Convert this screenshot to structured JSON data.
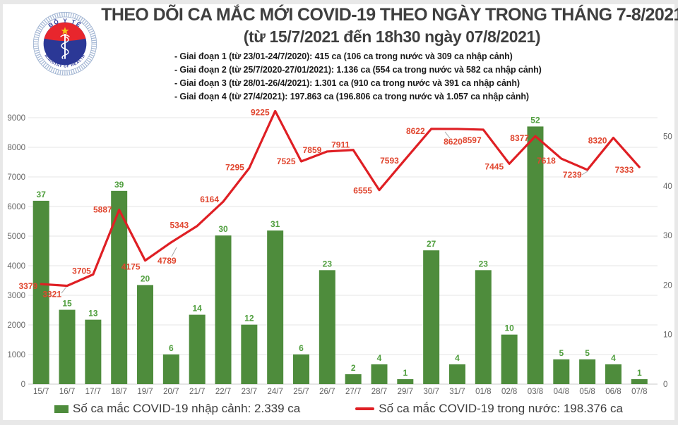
{
  "header": {
    "title_line1": "THEO DÕI CA MẮC MỚI COVID-19 THEO NGÀY TRONG THÁNG 7-8/2021",
    "title_line2": "(từ 15/7/2021 đến 18h30 ngày 07/8/2021)",
    "logo": {
      "top_text": "BỘ Y TẾ",
      "bottom_text": "MINISTRY OF HEALTH"
    },
    "notes": [
      "- Giai đoạn 1 (từ 23/01-24/7/2020): 415 ca (106 ca trong nước và 309 ca nhập cảnh)",
      "- Giai đoạn 2 (từ 25/7/2020-27/01/2021): 1.136 ca (554 ca trong nước và 582 ca nhập cảnh)",
      "- Giai đoạn 3 (từ 28/01-26/4/2021): 1.301 ca (910 ca trong nước và 391 ca nhập cảnh)",
      "- Giai đoạn 4 (từ 27/4/2021): 197.863 ca (196.806 ca trong nước và 1.057 ca nhập cảnh)"
    ]
  },
  "chart_data": {
    "type": "combo-bar-line",
    "categories": [
      "15/7",
      "16/7",
      "17/7",
      "18/7",
      "19/7",
      "20/7",
      "21/7",
      "22/7",
      "23/7",
      "24/7",
      "25/7",
      "26/7",
      "27/7",
      "28/7",
      "29/7",
      "30/7",
      "31/7",
      "01/8",
      "02/8",
      "03/8",
      "04/8",
      "05/8",
      "06/8",
      "07/8"
    ],
    "series": [
      {
        "name": "Số ca mắc COVID-19 nhập cảnh",
        "type": "bar",
        "axis": "right",
        "values": [
          37,
          15,
          13,
          39,
          20,
          6,
          14,
          30,
          12,
          31,
          6,
          23,
          2,
          4,
          1,
          27,
          4,
          23,
          10,
          52,
          5,
          5,
          4,
          1
        ]
      },
      {
        "name": "Số ca mắc COVID-19 trong nước",
        "type": "line",
        "axis": "left",
        "values": [
          3379,
          3321,
          3705,
          5887,
          4175,
          4789,
          5343,
          6164,
          7295,
          9225,
          7525,
          7859,
          7911,
          6555,
          7593,
          8622,
          8620,
          8597,
          7445,
          8377,
          7618,
          7239,
          8320,
          7333
        ]
      }
    ],
    "left_axis": {
      "min": 0,
      "max": 9000,
      "tick_step": 1000
    },
    "right_axis": {
      "min": 0,
      "max": 50,
      "tick_step": 10
    },
    "grid": true,
    "data_labels": true,
    "legend_position": "bottom"
  },
  "legend": [
    {
      "swatch": "bar",
      "label": "Số ca mắc COVID-19 nhập cảnh: 2.339 ca"
    },
    {
      "swatch": "line",
      "label": "Số ca mắc COVID-19 trong nước: 198.376 ca"
    }
  ],
  "colors": {
    "page_bg": "#e8e8e8",
    "card_bg": "#ffffff",
    "bar": "#4e8c3c",
    "bar_label": "#4f9e3d",
    "line": "#df1f24",
    "line_label": "#e0462f",
    "grid": "#e5e5e5",
    "zero_line": "#c9c9c9",
    "leader_line": "#a6a6a6",
    "axis_text": "#666666",
    "title_text": "#3f3f3f",
    "note_text": "#1a1a1a",
    "legend_text": "#3d3d3d",
    "logo_navy": "#2b3896",
    "logo_red": "#e8262d",
    "logo_gold": "#f5c518",
    "logo_ring": "#9db3d4"
  }
}
